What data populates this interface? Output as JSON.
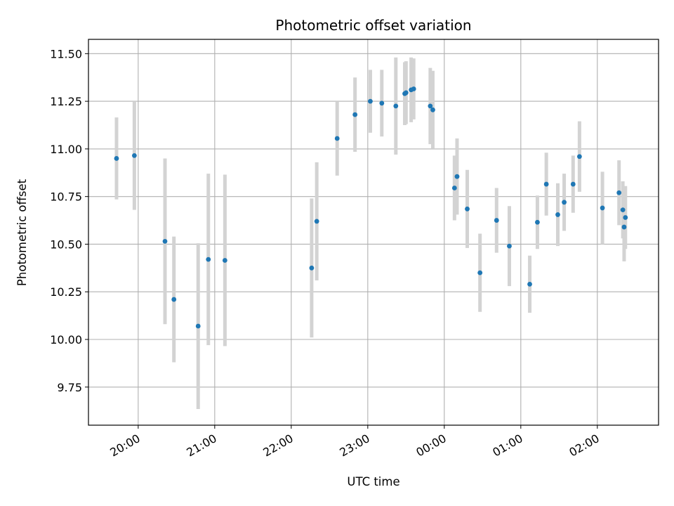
{
  "chart_data": {
    "type": "scatter",
    "title": "Photometric offset variation",
    "xlabel": "UTC time",
    "ylabel": "Photometric offset",
    "x_axis_type": "time",
    "x_start": "19:00",
    "xlim": [
      "19:21",
      "02:48"
    ],
    "ylim": [
      9.55,
      11.575
    ],
    "xticks": [
      "20:00",
      "21:00",
      "22:00",
      "23:00",
      "00:00",
      "01:00",
      "02:00"
    ],
    "yticks": [
      "9.75",
      "10.00",
      "10.25",
      "10.50",
      "10.75",
      "11.00",
      "11.25",
      "11.50"
    ],
    "grid": true,
    "colors": {
      "point": "#1f77b4",
      "errorbar": "#d3d3d3",
      "grid": "#b0b0b0"
    },
    "series": [
      {
        "points": [
          {
            "x": "19:43",
            "y": 10.95,
            "err": 0.215
          },
          {
            "x": "19:57",
            "y": 10.965,
            "err": 0.285
          },
          {
            "x": "20:21",
            "y": 10.515,
            "err": 0.435
          },
          {
            "x": "20:28",
            "y": 10.21,
            "err": 0.33
          },
          {
            "x": "20:47",
            "y": 10.07,
            "err": 0.435
          },
          {
            "x": "20:55",
            "y": 10.42,
            "err": 0.45
          },
          {
            "x": "21:08",
            "y": 10.415,
            "err": 0.45
          },
          {
            "x": "22:16",
            "y": 10.375,
            "err": 0.365
          },
          {
            "x": "22:20",
            "y": 10.62,
            "err": 0.31
          },
          {
            "x": "22:36",
            "y": 11.055,
            "err": 0.195
          },
          {
            "x": "22:50",
            "y": 11.18,
            "err": 0.195
          },
          {
            "x": "23:02",
            "y": 11.25,
            "err": 0.165
          },
          {
            "x": "23:11",
            "y": 11.24,
            "err": 0.175
          },
          {
            "x": "23:22",
            "y": 11.225,
            "err": 0.255
          },
          {
            "x": "23:29",
            "y": 11.29,
            "err": 0.165
          },
          {
            "x": "23:30",
            "y": 11.295,
            "err": 0.165
          },
          {
            "x": "23:34",
            "y": 11.31,
            "err": 0.17
          },
          {
            "x": "23:36",
            "y": 11.315,
            "err": 0.16
          },
          {
            "x": "23:49",
            "y": 11.225,
            "err": 0.2
          },
          {
            "x": "23:51",
            "y": 11.205,
            "err": 0.205
          },
          {
            "x": "00:08",
            "y": 10.795,
            "err": 0.17
          },
          {
            "x": "00:10",
            "y": 10.855,
            "err": 0.2
          },
          {
            "x": "00:18",
            "y": 10.685,
            "err": 0.205
          },
          {
            "x": "00:28",
            "y": 10.35,
            "err": 0.205
          },
          {
            "x": "00:41",
            "y": 10.625,
            "err": 0.17
          },
          {
            "x": "00:51",
            "y": 10.49,
            "err": 0.21
          },
          {
            "x": "01:07",
            "y": 10.29,
            "err": 0.15
          },
          {
            "x": "01:13",
            "y": 10.615,
            "err": 0.14
          },
          {
            "x": "01:20",
            "y": 10.815,
            "err": 0.165
          },
          {
            "x": "01:29",
            "y": 10.655,
            "err": 0.165
          },
          {
            "x": "01:34",
            "y": 10.72,
            "err": 0.15
          },
          {
            "x": "01:41",
            "y": 10.815,
            "err": 0.15
          },
          {
            "x": "01:46",
            "y": 10.96,
            "err": 0.185
          },
          {
            "x": "02:04",
            "y": 10.69,
            "err": 0.19
          },
          {
            "x": "02:17",
            "y": 10.77,
            "err": 0.17
          },
          {
            "x": "02:20",
            "y": 10.68,
            "err": 0.15
          },
          {
            "x": "02:21",
            "y": 10.59,
            "err": 0.18
          },
          {
            "x": "02:22",
            "y": 10.64,
            "err": 0.165
          }
        ]
      }
    ]
  }
}
